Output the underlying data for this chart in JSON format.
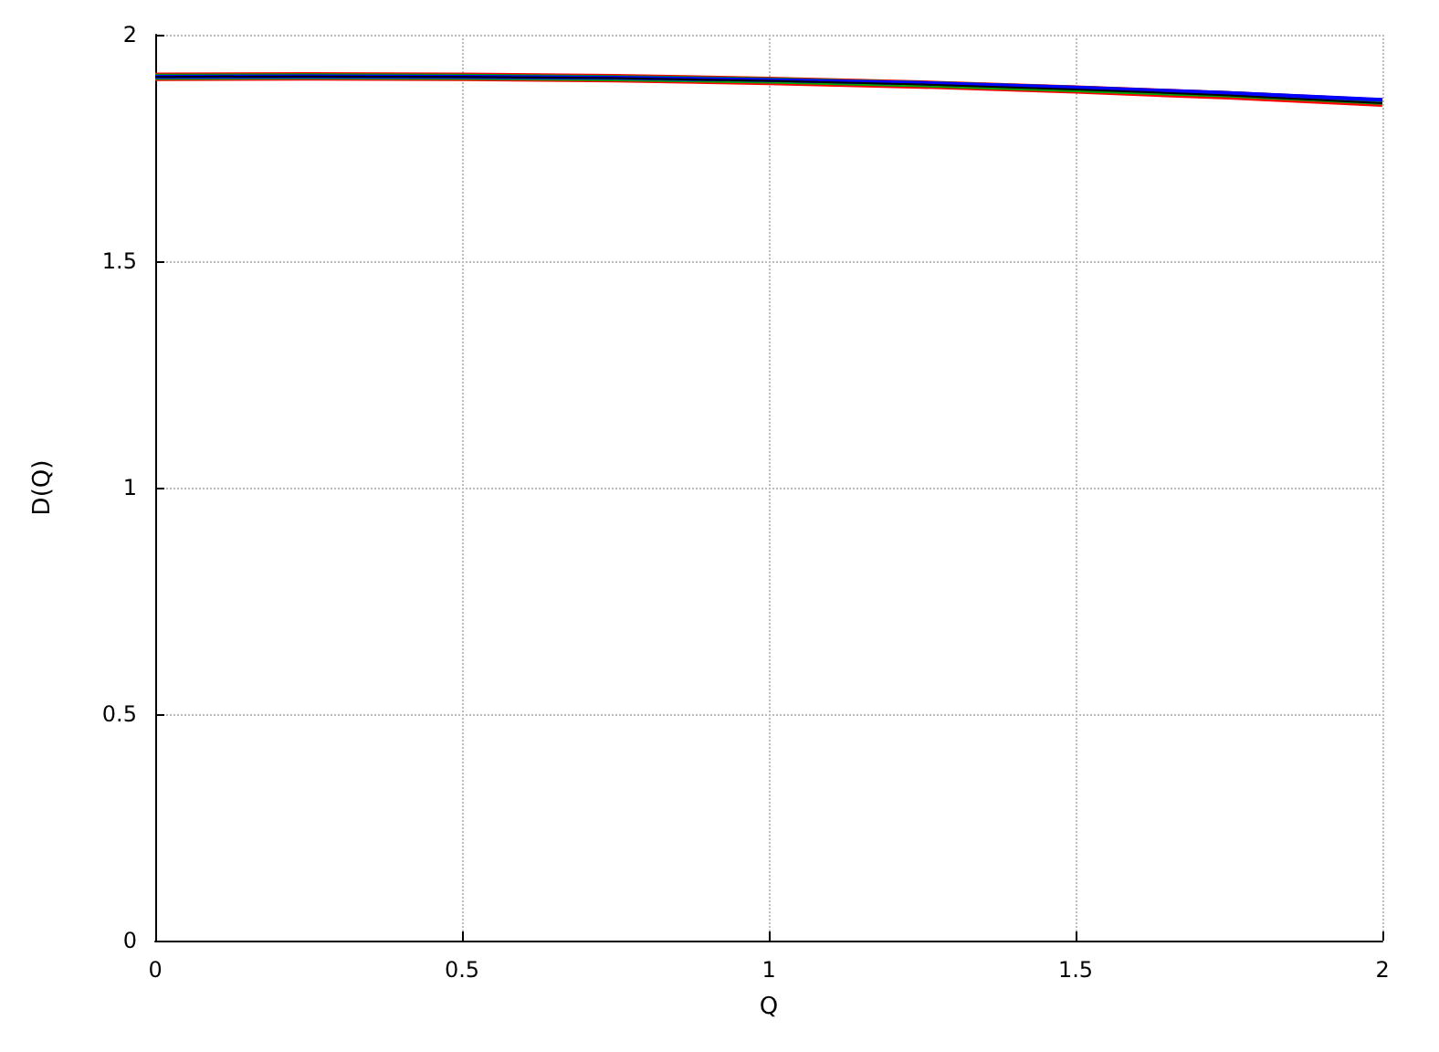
{
  "chart_data": {
    "type": "line",
    "xlabel": "Q",
    "ylabel": "D(Q)",
    "x": [
      0,
      0.25,
      0.5,
      0.75,
      1,
      1.25,
      1.5,
      1.75,
      2
    ],
    "series": [
      {
        "color": "#ff0000",
        "values": [
          1.907,
          1.908,
          1.907,
          1.904,
          1.898,
          1.89,
          1.879,
          1.866,
          1.85
        ]
      },
      {
        "color": "#00a000",
        "values": [
          1.907,
          1.908,
          1.907,
          1.904,
          1.899,
          1.891,
          1.88,
          1.868,
          1.852
        ]
      },
      {
        "color": "#0000ff",
        "values": [
          1.907,
          1.908,
          1.907,
          1.905,
          1.9,
          1.893,
          1.883,
          1.871,
          1.856
        ]
      },
      {
        "color": "#000000",
        "values": [
          1.907,
          1.908,
          1.907,
          1.904,
          1.898,
          1.89,
          1.879,
          1.866,
          1.849
        ]
      }
    ],
    "xlim": [
      0,
      2
    ],
    "xticks": [
      0,
      0.5,
      1,
      1.5,
      2
    ],
    "ylim": [
      0,
      2
    ],
    "yticks": [
      0,
      0.5,
      1,
      1.5,
      2
    ],
    "grid": true,
    "marker": "none",
    "line_style": "solid"
  }
}
